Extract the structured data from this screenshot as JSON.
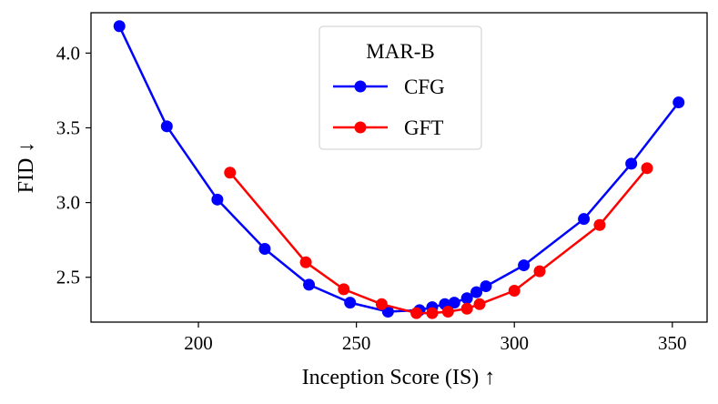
{
  "chart_data": {
    "type": "line",
    "xlabel": "Inception Score (IS) ↑",
    "ylabel": "FID ↓",
    "xlim": [
      166,
      361
    ],
    "ylim": [
      2.2,
      4.27
    ],
    "xticks": [
      200,
      250,
      300,
      350
    ],
    "yticks": [
      2.5,
      3.0,
      3.5,
      4.0
    ],
    "xtick_labels": [
      "200",
      "250",
      "300",
      "350"
    ],
    "ytick_labels": [
      "2.5",
      "3.0",
      "3.5",
      "4.0"
    ],
    "grid": false,
    "legend": {
      "title": "MAR-B",
      "placement": "top-center"
    },
    "series": [
      {
        "name": "CFG",
        "color": "#0000ff",
        "x": [
          175,
          190,
          206,
          221,
          235,
          248,
          260,
          270,
          274,
          278,
          281,
          285,
          288,
          291,
          303,
          322,
          337,
          352
        ],
        "y": [
          4.18,
          3.51,
          3.02,
          2.69,
          2.45,
          2.33,
          2.27,
          2.28,
          2.3,
          2.32,
          2.33,
          2.36,
          2.4,
          2.44,
          2.58,
          2.89,
          3.26,
          3.67
        ]
      },
      {
        "name": "GFT",
        "color": "#ff0000",
        "x": [
          210,
          234,
          246,
          258,
          269,
          274,
          279,
          285,
          289,
          300,
          308,
          327,
          342
        ],
        "y": [
          3.2,
          2.6,
          2.42,
          2.32,
          2.26,
          2.26,
          2.27,
          2.29,
          2.32,
          2.41,
          2.54,
          2.85,
          3.23
        ]
      }
    ]
  }
}
